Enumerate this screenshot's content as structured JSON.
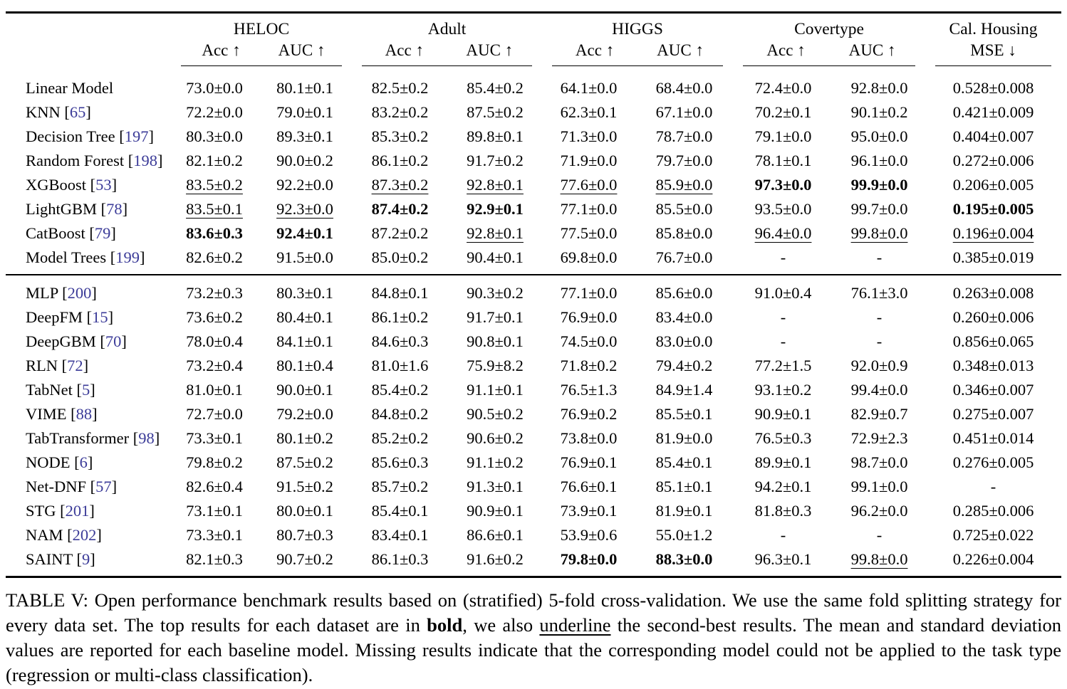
{
  "page": {
    "background": "#ffffff",
    "text_color": "#000000",
    "citation_color": "#3b3b98"
  },
  "table": {
    "groups": [
      {
        "label": "HELOC",
        "cols": [
          "Acc ↑",
          "AUC ↑"
        ]
      },
      {
        "label": "Adult",
        "cols": [
          "Acc ↑",
          "AUC ↑"
        ]
      },
      {
        "label": "HIGGS",
        "cols": [
          "Acc ↑",
          "AUC ↑"
        ]
      },
      {
        "label": "Covertype",
        "cols": [
          "Acc ↑",
          "AUC ↑"
        ]
      },
      {
        "label": "Cal. Housing",
        "cols": [
          "MSE ↓"
        ]
      }
    ],
    "style_legend": {
      "b": "bold",
      "u": "underline"
    },
    "sections": [
      {
        "rows": [
          {
            "model": "Linear Model",
            "ref": null,
            "values": [
              [
                "73.0±0.0",
                ""
              ],
              [
                "80.1±0.1",
                ""
              ],
              [
                "82.5±0.2",
                ""
              ],
              [
                "85.4±0.2",
                ""
              ],
              [
                "64.1±0.0",
                ""
              ],
              [
                "68.4±0.0",
                ""
              ],
              [
                "72.4±0.0",
                ""
              ],
              [
                "92.8±0.0",
                ""
              ],
              [
                "0.528±0.008",
                ""
              ]
            ]
          },
          {
            "model": "KNN",
            "ref": "65",
            "values": [
              [
                "72.2±0.0",
                ""
              ],
              [
                "79.0±0.1",
                ""
              ],
              [
                "83.2±0.2",
                ""
              ],
              [
                "87.5±0.2",
                ""
              ],
              [
                "62.3±0.1",
                ""
              ],
              [
                "67.1±0.0",
                ""
              ],
              [
                "70.2±0.1",
                ""
              ],
              [
                "90.1±0.2",
                ""
              ],
              [
                "0.421±0.009",
                ""
              ]
            ]
          },
          {
            "model": "Decision Tree",
            "ref": "197",
            "values": [
              [
                "80.3±0.0",
                ""
              ],
              [
                "89.3±0.1",
                ""
              ],
              [
                "85.3±0.2",
                ""
              ],
              [
                "89.8±0.1",
                ""
              ],
              [
                "71.3±0.0",
                ""
              ],
              [
                "78.7±0.0",
                ""
              ],
              [
                "79.1±0.0",
                ""
              ],
              [
                "95.0±0.0",
                ""
              ],
              [
                "0.404±0.007",
                ""
              ]
            ]
          },
          {
            "model": "Random Forest",
            "ref": "198",
            "values": [
              [
                "82.1±0.2",
                ""
              ],
              [
                "90.0±0.2",
                ""
              ],
              [
                "86.1±0.2",
                ""
              ],
              [
                "91.7±0.2",
                ""
              ],
              [
                "71.9±0.0",
                ""
              ],
              [
                "79.7±0.0",
                ""
              ],
              [
                "78.1±0.1",
                ""
              ],
              [
                "96.1±0.0",
                ""
              ],
              [
                "0.272±0.006",
                ""
              ]
            ]
          },
          {
            "model": "XGBoost",
            "ref": "53",
            "values": [
              [
                "83.5±0.2",
                "u"
              ],
              [
                "92.2±0.0",
                ""
              ],
              [
                "87.3±0.2",
                "u"
              ],
              [
                "92.8±0.1",
                "u"
              ],
              [
                "77.6±0.0",
                "u"
              ],
              [
                "85.9±0.0",
                "u"
              ],
              [
                "97.3±0.0",
                "b"
              ],
              [
                "99.9±0.0",
                "b"
              ],
              [
                "0.206±0.005",
                ""
              ]
            ]
          },
          {
            "model": "LightGBM",
            "ref": "78",
            "values": [
              [
                "83.5±0.1",
                "u"
              ],
              [
                "92.3±0.0",
                "u"
              ],
              [
                "87.4±0.2",
                "b"
              ],
              [
                "92.9±0.1",
                "b"
              ],
              [
                "77.1±0.0",
                ""
              ],
              [
                "85.5±0.0",
                ""
              ],
              [
                "93.5±0.0",
                ""
              ],
              [
                "99.7±0.0",
                ""
              ],
              [
                "0.195±0.005",
                "b"
              ]
            ]
          },
          {
            "model": "CatBoost",
            "ref": "79",
            "values": [
              [
                "83.6±0.3",
                "b"
              ],
              [
                "92.4±0.1",
                "b"
              ],
              [
                "87.2±0.2",
                ""
              ],
              [
                "92.8±0.1",
                "u"
              ],
              [
                "77.5±0.0",
                ""
              ],
              [
                "85.8±0.0",
                ""
              ],
              [
                "96.4±0.0",
                "u"
              ],
              [
                "99.8±0.0",
                "u"
              ],
              [
                "0.196±0.004",
                "u"
              ]
            ]
          },
          {
            "model": "Model Trees",
            "ref": "199",
            "values": [
              [
                "82.6±0.2",
                ""
              ],
              [
                "91.5±0.0",
                ""
              ],
              [
                "85.0±0.2",
                ""
              ],
              [
                "90.4±0.1",
                ""
              ],
              [
                "69.8±0.0",
                ""
              ],
              [
                "76.7±0.0",
                ""
              ],
              [
                "-",
                ""
              ],
              [
                "-",
                ""
              ],
              [
                "0.385±0.019",
                ""
              ]
            ]
          }
        ]
      },
      {
        "rows": [
          {
            "model": "MLP",
            "ref": "200",
            "values": [
              [
                "73.2±0.3",
                ""
              ],
              [
                "80.3±0.1",
                ""
              ],
              [
                "84.8±0.1",
                ""
              ],
              [
                "90.3±0.2",
                ""
              ],
              [
                "77.1±0.0",
                ""
              ],
              [
                "85.6±0.0",
                ""
              ],
              [
                "91.0±0.4",
                ""
              ],
              [
                "76.1±3.0",
                ""
              ],
              [
                "0.263±0.008",
                ""
              ]
            ]
          },
          {
            "model": "DeepFM",
            "ref": "15",
            "values": [
              [
                "73.6±0.2",
                ""
              ],
              [
                "80.4±0.1",
                ""
              ],
              [
                "86.1±0.2",
                ""
              ],
              [
                "91.7±0.1",
                ""
              ],
              [
                "76.9±0.0",
                ""
              ],
              [
                "83.4±0.0",
                ""
              ],
              [
                "-",
                ""
              ],
              [
                "-",
                ""
              ],
              [
                "0.260±0.006",
                ""
              ]
            ]
          },
          {
            "model": "DeepGBM",
            "ref": "70",
            "values": [
              [
                "78.0±0.4",
                ""
              ],
              [
                "84.1±0.1",
                ""
              ],
              [
                "84.6±0.3",
                ""
              ],
              [
                "90.8±0.1",
                ""
              ],
              [
                "74.5±0.0",
                ""
              ],
              [
                "83.0±0.0",
                ""
              ],
              [
                "-",
                ""
              ],
              [
                "-",
                ""
              ],
              [
                "0.856±0.065",
                ""
              ]
            ]
          },
          {
            "model": "RLN",
            "ref": "72",
            "values": [
              [
                "73.2±0.4",
                ""
              ],
              [
                "80.1±0.4",
                ""
              ],
              [
                "81.0±1.6",
                ""
              ],
              [
                "75.9±8.2",
                ""
              ],
              [
                "71.8±0.2",
                ""
              ],
              [
                "79.4±0.2",
                ""
              ],
              [
                "77.2±1.5",
                ""
              ],
              [
                "92.0±0.9",
                ""
              ],
              [
                "0.348±0.013",
                ""
              ]
            ]
          },
          {
            "model": "TabNet",
            "ref": "5",
            "values": [
              [
                "81.0±0.1",
                ""
              ],
              [
                "90.0±0.1",
                ""
              ],
              [
                "85.4±0.2",
                ""
              ],
              [
                "91.1±0.1",
                ""
              ],
              [
                "76.5±1.3",
                ""
              ],
              [
                "84.9±1.4",
                ""
              ],
              [
                "93.1±0.2",
                ""
              ],
              [
                "99.4±0.0",
                ""
              ],
              [
                "0.346±0.007",
                ""
              ]
            ]
          },
          {
            "model": "VIME",
            "ref": "88",
            "values": [
              [
                "72.7±0.0",
                ""
              ],
              [
                "79.2±0.0",
                ""
              ],
              [
                "84.8±0.2",
                ""
              ],
              [
                "90.5±0.2",
                ""
              ],
              [
                "76.9±0.2",
                ""
              ],
              [
                "85.5±0.1",
                ""
              ],
              [
                "90.9±0.1",
                ""
              ],
              [
                "82.9±0.7",
                ""
              ],
              [
                "0.275±0.007",
                ""
              ]
            ]
          },
          {
            "model": "TabTransformer",
            "ref": "98",
            "values": [
              [
                "73.3±0.1",
                ""
              ],
              [
                "80.1±0.2",
                ""
              ],
              [
                "85.2±0.2",
                ""
              ],
              [
                "90.6±0.2",
                ""
              ],
              [
                "73.8±0.0",
                ""
              ],
              [
                "81.9±0.0",
                ""
              ],
              [
                "76.5±0.3",
                ""
              ],
              [
                "72.9±2.3",
                ""
              ],
              [
                "0.451±0.014",
                ""
              ]
            ]
          },
          {
            "model": "NODE",
            "ref": "6",
            "values": [
              [
                "79.8±0.2",
                ""
              ],
              [
                "87.5±0.2",
                ""
              ],
              [
                "85.6±0.3",
                ""
              ],
              [
                "91.1±0.2",
                ""
              ],
              [
                "76.9±0.1",
                ""
              ],
              [
                "85.4±0.1",
                ""
              ],
              [
                "89.9±0.1",
                ""
              ],
              [
                "98.7±0.0",
                ""
              ],
              [
                "0.276±0.005",
                ""
              ]
            ]
          },
          {
            "model": "Net-DNF",
            "ref": "57",
            "values": [
              [
                "82.6±0.4",
                ""
              ],
              [
                "91.5±0.2",
                ""
              ],
              [
                "85.7±0.2",
                ""
              ],
              [
                "91.3±0.1",
                ""
              ],
              [
                "76.6±0.1",
                ""
              ],
              [
                "85.1±0.1",
                ""
              ],
              [
                "94.2±0.1",
                ""
              ],
              [
                "99.1±0.0",
                ""
              ],
              [
                "-",
                ""
              ]
            ]
          },
          {
            "model": "STG",
            "ref": "201",
            "values": [
              [
                "73.1±0.1",
                ""
              ],
              [
                "80.0±0.1",
                ""
              ],
              [
                "85.4±0.1",
                ""
              ],
              [
                "90.9±0.1",
                ""
              ],
              [
                "73.9±0.1",
                ""
              ],
              [
                "81.9±0.1",
                ""
              ],
              [
                "81.8±0.3",
                ""
              ],
              [
                "96.2±0.0",
                ""
              ],
              [
                "0.285±0.006",
                ""
              ]
            ]
          },
          {
            "model": "NAM",
            "ref": "202",
            "values": [
              [
                "73.3±0.1",
                ""
              ],
              [
                "80.7±0.3",
                ""
              ],
              [
                "83.4±0.1",
                ""
              ],
              [
                "86.6±0.1",
                ""
              ],
              [
                "53.9±0.6",
                ""
              ],
              [
                "55.0±1.2",
                ""
              ],
              [
                "-",
                ""
              ],
              [
                "-",
                ""
              ],
              [
                "0.725±0.022",
                ""
              ]
            ]
          },
          {
            "model": "SAINT",
            "ref": "9",
            "values": [
              [
                "82.1±0.3",
                ""
              ],
              [
                "90.7±0.2",
                ""
              ],
              [
                "86.1±0.3",
                ""
              ],
              [
                "91.6±0.2",
                ""
              ],
              [
                "79.8±0.0",
                "b"
              ],
              [
                "88.3±0.0",
                "b"
              ],
              [
                "96.3±0.1",
                ""
              ],
              [
                "99.8±0.0",
                "u"
              ],
              [
                "0.226±0.004",
                ""
              ]
            ]
          }
        ]
      }
    ]
  },
  "caption": {
    "segments": [
      {
        "text": "TABLE V: Open performance benchmark results based on (stratified) 5-fold cross-validation. We use the same fold splitting strategy for every data set. The top results for each dataset are in ",
        "style": ""
      },
      {
        "text": "bold",
        "style": "b"
      },
      {
        "text": ", we also ",
        "style": ""
      },
      {
        "text": "underline",
        "style": "u"
      },
      {
        "text": " the second-best results. The mean and standard deviation values are reported for each baseline model. Missing results indicate that the corresponding model could not be applied to the task type (regression or multi-class classification).",
        "style": ""
      }
    ]
  }
}
